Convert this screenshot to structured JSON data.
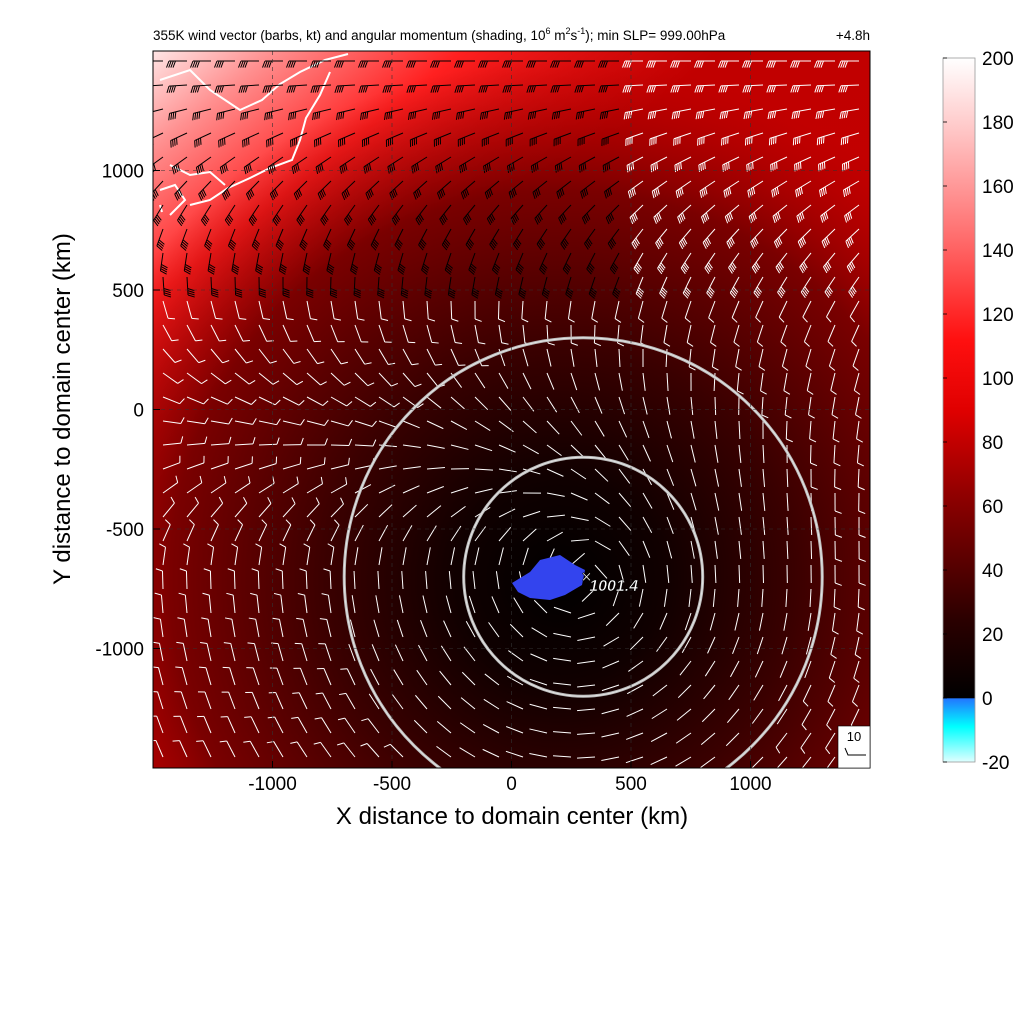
{
  "chart_data": {
    "type": "heatmap",
    "title": "355K wind vector (barbs, kt) and angular momentum (shading, 10",
    "title_exp1": "6",
    "title_mid": " m",
    "title_exp2": "2",
    "title_mid2": "s",
    "title_exp3": "-1",
    "title_end": "); min SLP= 999.00hPa",
    "time_label": "+4.8h",
    "xlabel": "X distance to domain center (km)",
    "ylabel": "Y distance to domain center (km)",
    "xlim": [
      -1500,
      1500
    ],
    "ylim": [
      -1500,
      1500
    ],
    "xticks": [
      -1000,
      -500,
      0,
      500,
      1000
    ],
    "xtick_labels": [
      "-1000",
      "-500",
      "0",
      "500",
      "1000"
    ],
    "yticks": [
      1000,
      500,
      0,
      -500,
      -1000
    ],
    "ytick_labels": [
      "1000",
      "500",
      "0",
      "-500",
      "-1000"
    ],
    "grid": "dashed",
    "colorbar": {
      "min": -20,
      "max": 200,
      "ticks": [
        200,
        180,
        160,
        140,
        120,
        100,
        80,
        60,
        40,
        20,
        0,
        -20
      ],
      "tick_labels": [
        "200",
        "180",
        "160",
        "140",
        "120",
        "100",
        "80",
        "60",
        "40",
        "20",
        "0",
        "-20"
      ],
      "colors": {
        "cyan": "#00ffff",
        "blue": "#3366ff",
        "black": "#000000",
        "darkred": "#6e0000",
        "red": "#ff0000",
        "pink": "#ff9a9a",
        "white": "#ffffff"
      }
    },
    "storm_center": {
      "x": 300,
      "y": -700,
      "label": "1001.4"
    },
    "rings_km": [
      500,
      1000
    ],
    "reference_barb": {
      "label": "10"
    }
  }
}
